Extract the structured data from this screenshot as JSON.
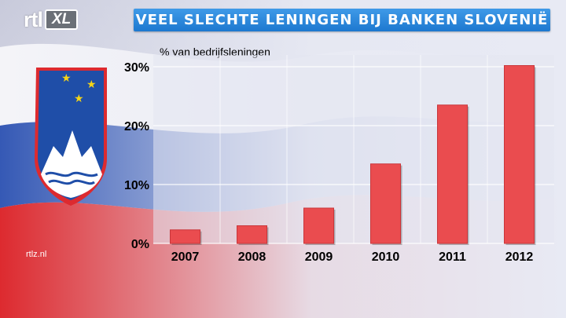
{
  "logo": {
    "text_main": "rtl",
    "text_badge": "XL"
  },
  "watermark": "rtlz.nl",
  "flag_colors": {
    "white": "#ffffff",
    "blue": "#1f4ea8",
    "red": "#dd2a2f"
  },
  "chart_data": {
    "type": "bar",
    "title": "VEEL SLECHTE LENINGEN BIJ BANKEN SLOVENIË",
    "ylabel": "% van bedrijfsleningen",
    "xlabel": "",
    "categories": [
      "2007",
      "2008",
      "2009",
      "2010",
      "2011",
      "2012"
    ],
    "values": [
      2.3,
      3.0,
      6.0,
      13.5,
      23.5,
      30.2
    ],
    "yticks": [
      0,
      10,
      20,
      30
    ],
    "ytick_labels": [
      "0%",
      "10%",
      "20%",
      "30%"
    ],
    "ylim": [
      0,
      30
    ],
    "bar_color": "#ea4c4f",
    "grid": true,
    "legend": "none"
  }
}
